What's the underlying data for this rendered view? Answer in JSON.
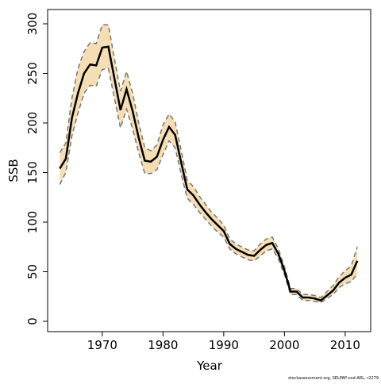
{
  "chart_data": {
    "type": "line",
    "xlabel": "Year",
    "ylabel": "SSB",
    "footnote": "stockassessment.org, SELPAP-cod-ARL, r2279",
    "x": [
      1963,
      1964,
      1965,
      1966,
      1967,
      1968,
      1969,
      1970,
      1971,
      1972,
      1973,
      1974,
      1975,
      1976,
      1977,
      1978,
      1979,
      1980,
      1981,
      1982,
      1983,
      1984,
      1985,
      1986,
      1987,
      1988,
      1989,
      1990,
      1991,
      1992,
      1993,
      1994,
      1995,
      1996,
      1997,
      1998,
      1999,
      2000,
      2001,
      2002,
      2003,
      2004,
      2005,
      2006,
      2007,
      2008,
      2009,
      2010,
      2011,
      2012
    ],
    "values": [
      154,
      164,
      205,
      230,
      250,
      259,
      258,
      276,
      277,
      245,
      213,
      234,
      212,
      185,
      162,
      161,
      166,
      183,
      196,
      188,
      160,
      133,
      127,
      118,
      110,
      103,
      97,
      91,
      78,
      73,
      70,
      67,
      66,
      72,
      77,
      79,
      68,
      51,
      30,
      30,
      24,
      24,
      23,
      21,
      26,
      31,
      39,
      44,
      47,
      61
    ],
    "upper": [
      170,
      180,
      225,
      255,
      272,
      281,
      280,
      299,
      299,
      265,
      232,
      252,
      230,
      200,
      175,
      172,
      178,
      198,
      209,
      201,
      172,
      142,
      136,
      126,
      118,
      110,
      104,
      97,
      83,
      78,
      75,
      72,
      71,
      78,
      83,
      85,
      73,
      55,
      33,
      33,
      27,
      27,
      26,
      24,
      30,
      36,
      45,
      51,
      56,
      75
    ],
    "lower": [
      138,
      150,
      187,
      210,
      230,
      238,
      237,
      254,
      255,
      225,
      195,
      214,
      194,
      170,
      149,
      149,
      153,
      168,
      182,
      175,
      148,
      124,
      118,
      110,
      103,
      96,
      90,
      85,
      73,
      68,
      65,
      62,
      61,
      66,
      71,
      73,
      63,
      47,
      27,
      27,
      21,
      21,
      20,
      19,
      23,
      27,
      34,
      38,
      40,
      48
    ],
    "color": "#000000",
    "band_color": "#f5deb3",
    "bound_color": "#777777",
    "xlim": [
      1961,
      2014.2
    ],
    "ylim": [
      -10.4,
      314.4
    ],
    "xticks": [
      1970,
      1980,
      1990,
      2000,
      2010
    ],
    "yticks": [
      0,
      50,
      100,
      150,
      200,
      250,
      300
    ]
  }
}
